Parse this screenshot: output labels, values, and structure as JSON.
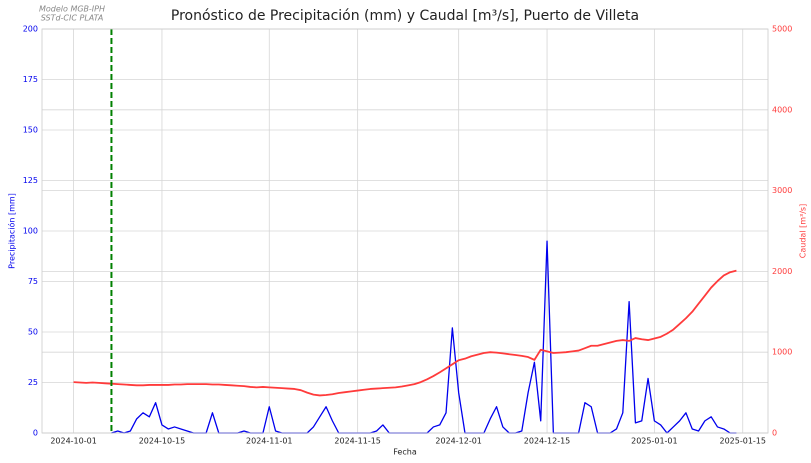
{
  "chart_data": {
    "type": "line",
    "title": "Pronóstico de Precipitación (mm) y Caudal [m³/s], Puerto de Villeta",
    "annotation": [
      "Modelo MGB-IPH",
      "SSTd-CIC PLATA"
    ],
    "xlabel": "Fecha",
    "ylabel": "Precipitación [mm]",
    "y2label": "Caudal [m³/s]",
    "x": [
      "2024-10-01",
      "2024-10-02",
      "2024-10-03",
      "2024-10-04",
      "2024-10-05",
      "2024-10-06",
      "2024-10-07",
      "2024-10-08",
      "2024-10-09",
      "2024-10-10",
      "2024-10-11",
      "2024-10-12",
      "2024-10-13",
      "2024-10-14",
      "2024-10-15",
      "2024-10-16",
      "2024-10-17",
      "2024-10-18",
      "2024-10-19",
      "2024-10-20",
      "2024-10-21",
      "2024-10-22",
      "2024-10-23",
      "2024-10-24",
      "2024-10-25",
      "2024-10-26",
      "2024-10-27",
      "2024-10-28",
      "2024-10-29",
      "2024-10-30",
      "2024-10-31",
      "2024-11-01",
      "2024-11-02",
      "2024-11-03",
      "2024-11-04",
      "2024-11-05",
      "2024-11-06",
      "2024-11-07",
      "2024-11-08",
      "2024-11-09",
      "2024-11-10",
      "2024-11-11",
      "2024-11-12",
      "2024-11-13",
      "2024-11-14",
      "2024-11-15",
      "2024-11-16",
      "2024-11-17",
      "2024-11-18",
      "2024-11-19",
      "2024-11-20",
      "2024-11-21",
      "2024-11-22",
      "2024-11-23",
      "2024-11-24",
      "2024-11-25",
      "2024-11-26",
      "2024-11-27",
      "2024-11-28",
      "2024-11-29",
      "2024-11-30",
      "2024-12-01",
      "2024-12-02",
      "2024-12-03",
      "2024-12-04",
      "2024-12-05",
      "2024-12-06",
      "2024-12-07",
      "2024-12-08",
      "2024-12-09",
      "2024-12-10",
      "2024-12-11",
      "2024-12-12",
      "2024-12-13",
      "2024-12-14",
      "2024-12-15",
      "2024-12-16",
      "2024-12-17",
      "2024-12-18",
      "2024-12-19",
      "2024-12-20",
      "2024-12-21",
      "2024-12-22",
      "2024-12-23",
      "2024-12-24",
      "2024-12-25",
      "2024-12-26",
      "2024-12-27",
      "2024-12-28",
      "2024-12-29",
      "2024-12-30",
      "2024-12-31",
      "2025-01-01",
      "2025-01-02",
      "2025-01-03",
      "2025-01-04",
      "2025-01-05",
      "2025-01-06",
      "2025-01-07",
      "2025-01-08",
      "2025-01-09",
      "2025-01-10",
      "2025-01-11",
      "2025-01-12",
      "2025-01-13",
      "2025-01-14"
    ],
    "series": [
      {
        "name": "Precipitación",
        "color": "#0000ee",
        "axis": "y",
        "values": [
          null,
          null,
          null,
          null,
          null,
          null,
          0,
          1,
          0,
          1,
          7,
          10,
          8,
          15,
          4,
          2,
          3,
          2,
          1,
          0,
          0,
          0,
          10,
          0,
          0,
          0,
          0,
          1,
          0,
          0,
          0,
          13,
          1,
          0,
          0,
          0,
          0,
          0,
          3,
          8,
          13,
          6,
          0,
          0,
          0,
          0,
          0,
          0,
          1,
          4,
          0,
          0,
          0,
          0,
          0,
          0,
          0,
          3,
          4,
          10,
          52,
          20,
          0,
          0,
          0,
          0,
          7,
          13,
          3,
          0,
          0,
          1,
          20,
          35,
          6,
          95,
          0,
          0,
          0,
          0,
          0,
          15,
          13,
          0,
          0,
          0,
          2,
          10,
          65,
          5,
          6,
          27,
          6,
          4,
          0,
          3,
          6,
          10,
          2,
          1,
          6,
          8,
          3,
          2,
          0,
          0
        ]
      },
      {
        "name": "Caudal",
        "color": "#ff3b3b",
        "axis": "y2",
        "values": [
          630,
          625,
          620,
          625,
          620,
          615,
          610,
          605,
          600,
          595,
          590,
          590,
          595,
          595,
          595,
          595,
          600,
          600,
          605,
          605,
          605,
          605,
          600,
          600,
          595,
          590,
          585,
          580,
          570,
          565,
          570,
          565,
          560,
          555,
          550,
          545,
          530,
          500,
          475,
          465,
          470,
          480,
          495,
          505,
          515,
          525,
          535,
          545,
          550,
          555,
          560,
          565,
          575,
          590,
          605,
          630,
          665,
          705,
          750,
          800,
          850,
          900,
          920,
          950,
          970,
          990,
          1000,
          995,
          985,
          975,
          965,
          955,
          940,
          905,
          1030,
          1010,
          990,
          995,
          1000,
          1010,
          1020,
          1050,
          1080,
          1080,
          1100,
          1120,
          1140,
          1150,
          1140,
          1175,
          1160,
          1150,
          1170,
          1190,
          1230,
          1280,
          1350,
          1420,
          1500,
          1600,
          1700,
          1800,
          1880,
          1950,
          1990,
          2010
        ]
      }
    ],
    "vline": {
      "x": "2024-10-07",
      "color": "#008000"
    },
    "xlim": [
      "2024-09-26",
      "2025-01-19"
    ],
    "xticks": [
      "2024-10-01",
      "2024-10-15",
      "2024-11-01",
      "2024-11-15",
      "2024-12-01",
      "2024-12-15",
      "2025-01-01",
      "2025-01-15"
    ],
    "ylim": [
      0,
      200
    ],
    "yticks": [
      0,
      25,
      50,
      75,
      100,
      125,
      150,
      175,
      200
    ],
    "y2lim": [
      0,
      5000
    ],
    "y2ticks": [
      0,
      1000,
      2000,
      3000,
      4000,
      5000
    ],
    "grid": true
  }
}
